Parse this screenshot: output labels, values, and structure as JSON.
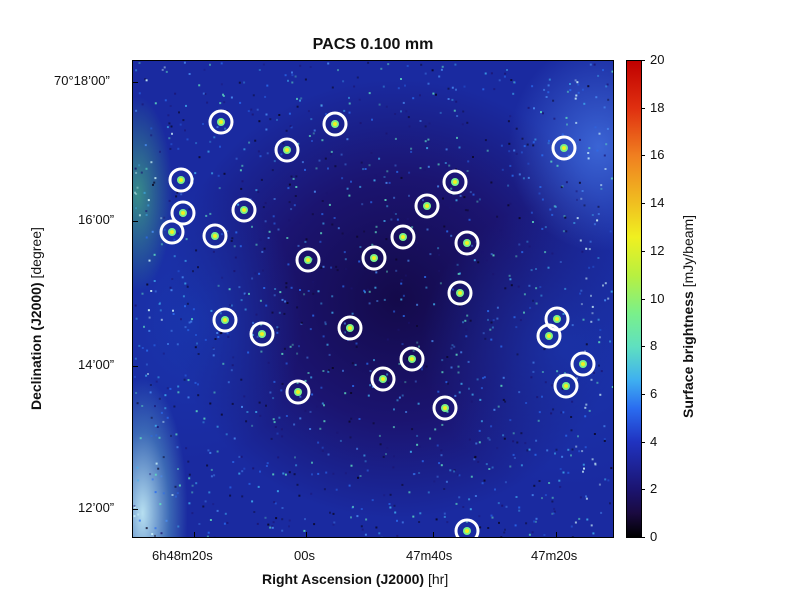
{
  "title": "PACS 0.100 mm",
  "y_axis": {
    "title_bold": "Declination (J2000)",
    "title_unit": " [degree]",
    "tick_labels": [
      "70°18’00”",
      "16’00”",
      "14’00”",
      "12’00”"
    ]
  },
  "x_axis": {
    "title_bold": "Right Ascension (J2000)",
    "title_unit": " [hr]",
    "tick_labels": [
      "6h48m20s",
      "00s",
      "47m40s",
      "47m20s"
    ]
  },
  "colorbar": {
    "title_bold": "Surface brightness",
    "title_unit": " [mJy/beam]",
    "range": [
      0,
      20
    ],
    "tick_labels": [
      "20",
      "18",
      "16",
      "14",
      "12",
      "10",
      "8",
      "6",
      "4",
      "2",
      "0"
    ],
    "colors": {
      "low": "#000000",
      "mid_low": "#2033c0",
      "mid": "#7af08a",
      "mid_high": "#f0f020",
      "high": "#c00000"
    }
  },
  "markers": {
    "shape": "circle",
    "color": "#ffffff",
    "count": 30
  }
}
